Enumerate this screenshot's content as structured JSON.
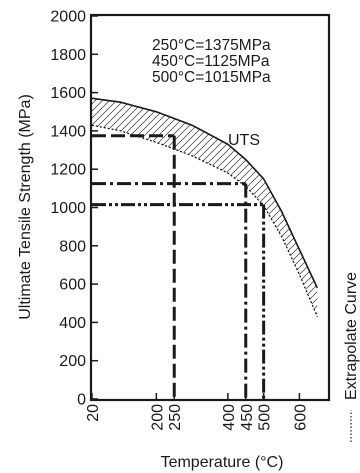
{
  "chart_data": {
    "type": "line",
    "xlabel": "Temperature (°C)",
    "ylabel": "Ultimate Tensile Strength (MPa)",
    "xlim": [
      20,
      680
    ],
    "ylim": [
      0,
      2000
    ],
    "xticks": [
      20,
      200,
      250,
      400,
      450,
      500,
      600
    ],
    "xtick_labels": [
      "20",
      "200",
      "250",
      "400",
      "450",
      "500",
      "600"
    ],
    "yticks": [
      0,
      200,
      400,
      600,
      800,
      1000,
      1200,
      1400,
      1600,
      1800,
      2000
    ],
    "ytick_labels": [
      "0",
      "200",
      "400",
      "600",
      "800",
      "1000",
      "1200",
      "1400",
      "1600",
      "1800",
      "2000"
    ],
    "grid": false,
    "series": [
      {
        "name": "UTS",
        "style": "solid",
        "x": [
          20,
          100,
          200,
          300,
          400,
          450,
          500,
          550,
          600,
          650
        ],
        "y": [
          1570,
          1550,
          1500,
          1430,
          1330,
          1250,
          1150,
          980,
          780,
          580
        ]
      },
      {
        "name": "Extrapolate Curve",
        "style": "dotted",
        "x": [
          20,
          100,
          200,
          300,
          400,
          450,
          500,
          550,
          600,
          650
        ],
        "y": [
          1430,
          1400,
          1340,
          1270,
          1180,
          1110,
          1010,
          850,
          650,
          430
        ]
      }
    ],
    "markers": [
      {
        "x": 250,
        "y": 1375,
        "style": "dashed"
      },
      {
        "x": 450,
        "y": 1125,
        "style": "dash-dot"
      },
      {
        "x": 500,
        "y": 1015,
        "style": "dash-dot-dot"
      }
    ],
    "annotations": [
      "250°C=1375MPa",
      "450°C=1125MPa",
      "500°C=1015MPa"
    ],
    "uts_label": "UTS",
    "legend_label": "Extrapolate Curve",
    "legend_position": "right"
  }
}
